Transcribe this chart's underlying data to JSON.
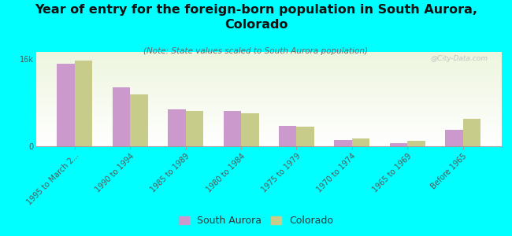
{
  "title": "Year of entry for the foreign-born population in South Aurora,\nColorado",
  "subtitle": "(Note: State values scaled to South Aurora population)",
  "categories": [
    "1995 to March 2...",
    "1990 to 1994",
    "1985 to 1989",
    "1980 to 1984",
    "1975 to 1979",
    "1970 to 1974",
    "1965 to 1969",
    "Before 1965"
  ],
  "south_aurora": [
    15200,
    10800,
    6800,
    6500,
    3800,
    1100,
    600,
    3000
  ],
  "colorado": [
    15700,
    9500,
    6500,
    6000,
    3600,
    1400,
    950,
    5000
  ],
  "south_aurora_color": "#cc99cc",
  "colorado_color": "#c8cc8a",
  "background_color": "#00ffff",
  "plot_bg_color": "#f5f8e8",
  "ylim_max": 17300,
  "watermark": "@City-Data.com",
  "title_fontsize": 11.5,
  "subtitle_fontsize": 7.5,
  "tick_fontsize": 7,
  "bar_width": 0.32,
  "legend_fontsize": 9
}
